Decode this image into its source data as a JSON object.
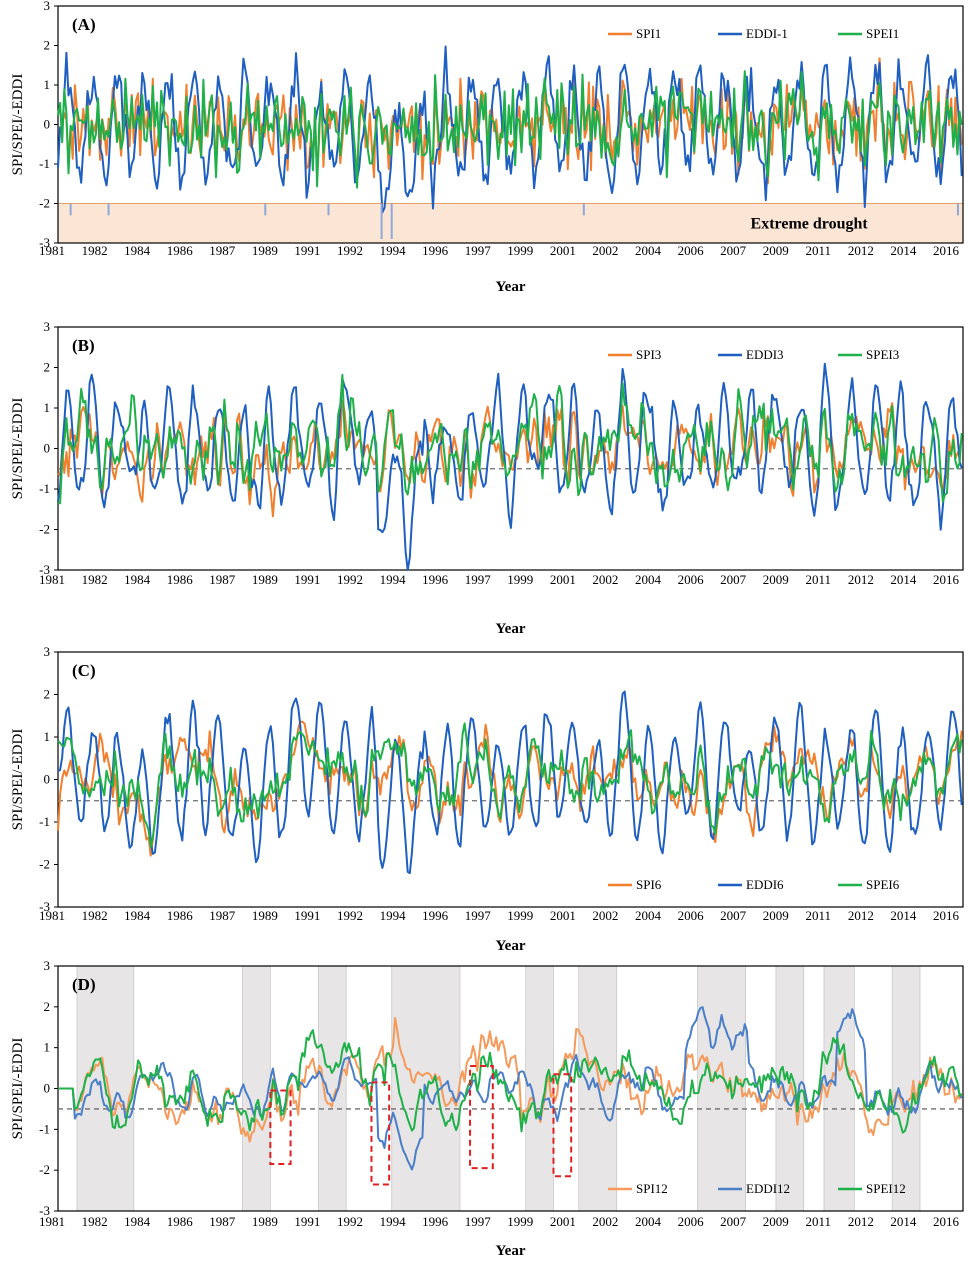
{
  "chart_data": [
    {
      "type": "line",
      "panel_label": "(A)",
      "ylabel": "SPI/SPEI/-EDDI",
      "xlabel": "Year",
      "ylim": [
        -3,
        3
      ],
      "yticks": [
        "3",
        "2",
        "1",
        "0",
        "-1",
        "-2",
        "-3"
      ],
      "x_tick_labels": [
        "1981",
        "1982",
        "1984",
        "1986",
        "1987",
        "1989",
        "1991",
        "1992",
        "1994",
        "1996",
        "1997",
        "1999",
        "2001",
        "2002",
        "2004",
        "2006",
        "2007",
        "2009",
        "2011",
        "2012",
        "2014",
        "2016"
      ],
      "series": [
        {
          "name": "SPI1",
          "color": "#f07f2e"
        },
        {
          "name": "EDDI-1",
          "color": "#1f5fbf"
        },
        {
          "name": "SPEI1",
          "color": "#1fb04a"
        }
      ],
      "threshold": null,
      "extreme_region": [
        -3,
        -2
      ],
      "annotation": "Extreme  drought",
      "legend_position": "top-right",
      "smoothing": 1,
      "amplitude": 1.0,
      "seed": 11
    },
    {
      "type": "line",
      "panel_label": "(B)",
      "ylabel": "SPI/SPEI/-EDDI",
      "xlabel": "Year",
      "ylim": [
        -3,
        3
      ],
      "yticks": [
        "3",
        "2",
        "1",
        "0",
        "-1",
        "-2",
        "-3"
      ],
      "x_tick_labels": [
        "1981",
        "1982",
        "1984",
        "1986",
        "1987",
        "1989",
        "1991",
        "1992",
        "1994",
        "1996",
        "1997",
        "1999",
        "2001",
        "2002",
        "2004",
        "2006",
        "2007",
        "2009",
        "2011",
        "2012",
        "2014",
        "2016"
      ],
      "series": [
        {
          "name": "SPI3",
          "color": "#f07f2e"
        },
        {
          "name": "EDDI3",
          "color": "#1f5fbf"
        },
        {
          "name": "SPEI3",
          "color": "#1fb04a"
        }
      ],
      "threshold": -0.5,
      "legend_position": "top-right",
      "smoothing": 3,
      "amplitude": 1.0,
      "seed": 23
    },
    {
      "type": "line",
      "panel_label": "(C)",
      "ylabel": "SPI/SPEI/-EDDI",
      "xlabel": "Year",
      "ylim": [
        -3,
        3
      ],
      "yticks": [
        "3",
        "2",
        "1",
        "0",
        "-1",
        "-2",
        "-3"
      ],
      "x_tick_labels": [
        "1981",
        "1982",
        "1984",
        "1986",
        "1987",
        "1989",
        "1991",
        "1992",
        "1994",
        "1996",
        "1997",
        "1999",
        "2001",
        "2002",
        "2004",
        "2006",
        "2007",
        "2009",
        "2011",
        "2012",
        "2014",
        "2016"
      ],
      "series": [
        {
          "name": "SPI6",
          "color": "#f07f2e"
        },
        {
          "name": "EDDI6",
          "color": "#1f5fbf"
        },
        {
          "name": "SPEI6",
          "color": "#1fb04a"
        }
      ],
      "threshold": -0.5,
      "legend_position": "bottom-right",
      "smoothing": 6,
      "amplitude": 1.0,
      "seed": 37
    },
    {
      "type": "line",
      "panel_label": "(D)",
      "ylabel": "SPI/SPEI/-EDDI",
      "xlabel": "Year",
      "ylim": [
        -3,
        3
      ],
      "yticks": [
        "3",
        "2",
        "1",
        "0",
        "-1",
        "-2",
        "-3"
      ],
      "x_tick_labels": [
        "1981",
        "1982",
        "1984",
        "1986",
        "1987",
        "1989",
        "1991",
        "1992",
        "1994",
        "1996",
        "1997",
        "1999",
        "2001",
        "2002",
        "2004",
        "2006",
        "2007",
        "2009",
        "2011",
        "2012",
        "2014",
        "2016"
      ],
      "series": [
        {
          "name": "SPI12",
          "color": "#f59a5a"
        },
        {
          "name": "EDDI12",
          "color": "#4a7fc8"
        },
        {
          "name": "SPEI12",
          "color": "#1fb04a"
        }
      ],
      "threshold": -0.5,
      "shaded_periods": [
        [
          1981.75,
          1984.0
        ],
        [
          1988.3,
          1989.4
        ],
        [
          1991.3,
          1992.4
        ],
        [
          1994.2,
          1996.9
        ],
        [
          1999.5,
          2000.6
        ],
        [
          2001.6,
          2003.1
        ],
        [
          2006.3,
          2008.2
        ],
        [
          2009.4,
          2010.5
        ],
        [
          2011.3,
          2012.5
        ],
        [
          2014.0,
          2015.1
        ]
      ],
      "dashed_boxes": [
        [
          1989.4,
          1990.2,
          -1.85,
          -0.05
        ],
        [
          1993.4,
          1994.1,
          -2.35,
          0.15
        ],
        [
          1997.3,
          1998.2,
          -1.95,
          0.55
        ],
        [
          2000.6,
          2001.3,
          -2.15,
          0.35
        ]
      ],
      "legend_position": "bottom-right",
      "smoothing": 12,
      "amplitude": 1.0,
      "seed": 51
    }
  ]
}
